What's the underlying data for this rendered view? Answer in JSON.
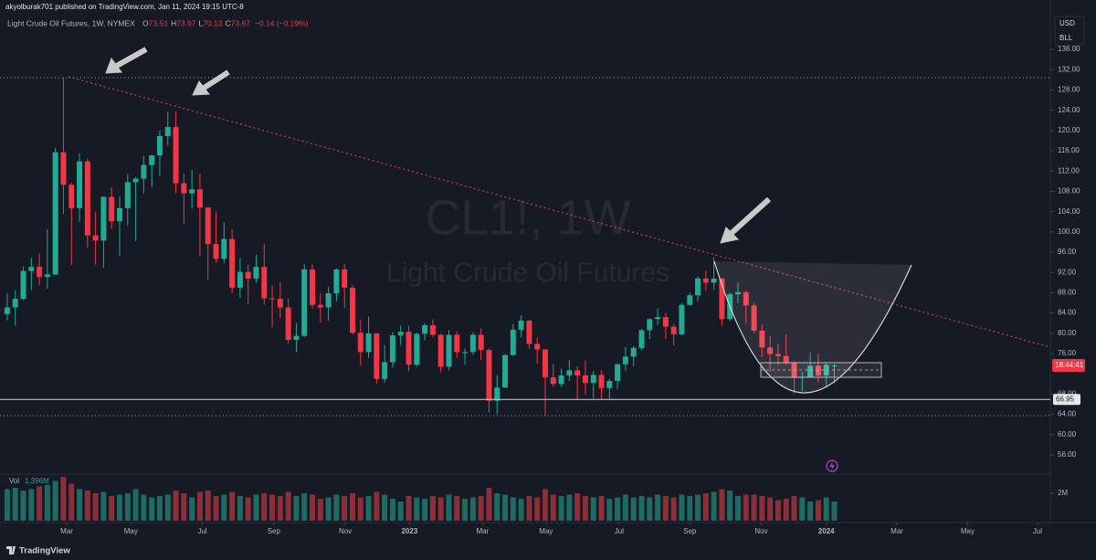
{
  "header": {
    "text": "akyolburak701 published on TradingView.com, Jan 11, 2024 19:15 UTC-8"
  },
  "footer": {
    "brand": "TradingView"
  },
  "chart_data": {
    "type": "candlestick",
    "title": "Light Crude Oil Futures, 1W, NYMEX",
    "watermark": [
      "CL1!, 1W",
      "Light Crude Oil Futures"
    ],
    "ohlc_legend": [
      {
        "key": "O",
        "value": "73.51"
      },
      {
        "key": "H",
        "value": "73.97"
      },
      {
        "key": "L",
        "value": "70.13"
      },
      {
        "key": "C",
        "value": "73.67"
      }
    ],
    "change": "−0.14 (−0.19%)",
    "currency": "USD",
    "unit": "BLL",
    "up_color": "#22ab94",
    "down_color": "#f23645",
    "candles": [
      [
        83.8,
        87.9,
        82.5,
        85.1
      ],
      [
        85.1,
        88.5,
        81.5,
        86.8
      ],
      [
        86.8,
        93.2,
        86.5,
        92.3
      ],
      [
        92.3,
        94.9,
        88.5,
        93.1
      ],
      [
        93.1,
        95.8,
        89.5,
        91.1
      ],
      [
        91.1,
        100.5,
        88.8,
        91.6
      ],
      [
        91.6,
        116.6,
        91.5,
        115.7
      ],
      [
        115.7,
        130.5,
        103.5,
        109.3
      ],
      [
        109.3,
        109.7,
        93.5,
        104.7
      ],
      [
        104.7,
        115.5,
        102.0,
        113.9
      ],
      [
        113.9,
        114.5,
        96.9,
        99.3
      ],
      [
        99.3,
        104.0,
        93.5,
        98.3
      ],
      [
        98.3,
        107.0,
        92.9,
        106.9
      ],
      [
        106.9,
        108.8,
        100.6,
        102.1
      ],
      [
        102.1,
        107.0,
        95.3,
        104.7
      ],
      [
        104.7,
        111.4,
        101.3,
        109.8
      ],
      [
        109.8,
        110.8,
        98.2,
        110.5
      ],
      [
        110.5,
        115.0,
        107.6,
        113.2
      ],
      [
        113.2,
        115.2,
        108.9,
        115.1
      ],
      [
        115.1,
        120.0,
        111.0,
        118.9
      ],
      [
        118.9,
        123.7,
        117.0,
        120.7
      ],
      [
        120.7,
        123.7,
        107.6,
        109.6
      ],
      [
        109.6,
        111.5,
        101.5,
        107.6
      ],
      [
        107.6,
        112.2,
        104.6,
        108.4
      ],
      [
        108.4,
        111.5,
        95.1,
        104.8
      ],
      [
        104.8,
        104.9,
        90.6,
        97.6
      ],
      [
        97.6,
        104.0,
        94.0,
        94.7
      ],
      [
        94.7,
        101.9,
        93.8,
        98.6
      ],
      [
        98.6,
        100.5,
        87.9,
        89.0
      ],
      [
        89.0,
        94.9,
        87.0,
        92.1
      ],
      [
        92.1,
        93.5,
        85.7,
        90.8
      ],
      [
        90.8,
        95.5,
        90.0,
        93.1
      ],
      [
        93.1,
        97.7,
        85.6,
        86.9
      ],
      [
        86.9,
        89.4,
        81.2,
        86.8
      ],
      [
        86.8,
        90.1,
        83.0,
        85.1
      ],
      [
        85.1,
        86.9,
        78.0,
        78.7
      ],
      [
        78.7,
        82.0,
        76.3,
        79.5
      ],
      [
        79.5,
        93.6,
        79.2,
        92.6
      ],
      [
        92.6,
        93.6,
        84.9,
        85.6
      ],
      [
        85.6,
        87.9,
        82.1,
        85.1
      ],
      [
        85.1,
        89.2,
        82.5,
        87.9
      ],
      [
        87.9,
        92.8,
        86.3,
        92.6
      ],
      [
        92.6,
        93.7,
        85.0,
        89.0
      ],
      [
        89.0,
        89.5,
        79.8,
        80.1
      ],
      [
        80.1,
        82.6,
        73.6,
        76.3
      ],
      [
        76.3,
        83.3,
        75.2,
        80.0
      ],
      [
        80.0,
        80.0,
        70.1,
        71.0
      ],
      [
        71.0,
        77.7,
        70.3,
        74.3
      ],
      [
        74.3,
        80.3,
        73.2,
        79.6
      ],
      [
        79.6,
        81.5,
        77.7,
        80.3
      ],
      [
        80.3,
        81.5,
        72.5,
        73.8
      ],
      [
        73.8,
        80.1,
        73.4,
        79.9
      ],
      [
        79.9,
        82.0,
        78.6,
        81.6
      ],
      [
        81.6,
        82.7,
        79.2,
        79.7
      ],
      [
        79.7,
        79.9,
        72.3,
        73.4
      ],
      [
        73.4,
        80.6,
        72.7,
        79.7
      ],
      [
        79.7,
        80.4,
        75.1,
        76.3
      ],
      [
        76.3,
        77.0,
        73.8,
        76.3
      ],
      [
        76.3,
        80.2,
        75.8,
        79.7
      ],
      [
        79.7,
        81.0,
        74.7,
        76.7
      ],
      [
        76.7,
        77.0,
        64.4,
        66.7
      ],
      [
        66.7,
        71.7,
        64.1,
        69.3
      ],
      [
        69.3,
        75.9,
        69.2,
        75.7
      ],
      [
        75.7,
        81.8,
        75.6,
        80.7
      ],
      [
        80.7,
        83.5,
        79.2,
        82.5
      ],
      [
        82.5,
        82.7,
        76.9,
        77.9
      ],
      [
        77.9,
        79.2,
        74.0,
        76.8
      ],
      [
        76.8,
        76.9,
        63.6,
        71.3
      ],
      [
        71.3,
        74.0,
        69.4,
        70.0
      ],
      [
        70.0,
        73.0,
        69.4,
        71.7
      ],
      [
        71.7,
        74.7,
        70.6,
        72.7
      ],
      [
        72.7,
        73.5,
        67.0,
        71.7
      ],
      [
        71.7,
        74.6,
        67.9,
        70.2
      ],
      [
        70.2,
        72.6,
        67.2,
        71.8
      ],
      [
        71.8,
        72.7,
        67.0,
        69.2
      ],
      [
        69.2,
        71.0,
        67.1,
        70.6
      ],
      [
        70.6,
        74.0,
        69.0,
        73.9
      ],
      [
        73.9,
        77.3,
        72.6,
        75.4
      ],
      [
        75.4,
        77.5,
        73.5,
        77.1
      ],
      [
        77.1,
        80.9,
        76.7,
        80.6
      ],
      [
        80.6,
        83.0,
        78.8,
        82.8
      ],
      [
        82.8,
        84.9,
        81.7,
        83.2
      ],
      [
        83.2,
        84.0,
        78.9,
        81.3
      ],
      [
        81.3,
        81.8,
        77.6,
        79.8
      ],
      [
        79.8,
        86.0,
        79.6,
        85.6
      ],
      [
        85.6,
        88.1,
        85.4,
        87.5
      ],
      [
        87.5,
        91.2,
        86.3,
        90.8
      ],
      [
        90.8,
        92.4,
        88.3,
        90.0
      ],
      [
        90.0,
        95.0,
        88.6,
        90.8
      ],
      [
        90.8,
        91.0,
        81.5,
        82.8
      ],
      [
        82.8,
        88.0,
        82.4,
        87.7
      ],
      [
        87.7,
        90.0,
        85.9,
        88.1
      ],
      [
        88.1,
        88.4,
        82.0,
        85.5
      ],
      [
        85.5,
        86.0,
        80.0,
        80.5
      ],
      [
        80.5,
        81.7,
        75.3,
        77.2
      ],
      [
        77.2,
        79.4,
        72.4,
        75.9
      ],
      [
        75.9,
        78.0,
        73.8,
        75.5
      ],
      [
        75.5,
        79.7,
        73.8,
        74.1
      ],
      [
        74.1,
        74.6,
        68.0,
        71.2
      ],
      [
        71.2,
        72.4,
        68.6,
        71.4
      ],
      [
        71.4,
        76.2,
        71.2,
        73.6
      ],
      [
        73.6,
        76.0,
        70.3,
        71.7
      ],
      [
        71.7,
        74.2,
        69.3,
        73.8
      ],
      [
        73.51,
        73.97,
        70.13,
        73.67
      ]
    ],
    "xlim": [
      -0.9,
      129.9
    ],
    "xticks": [
      {
        "value": 7.4,
        "label": "Mar"
      },
      {
        "value": 15.4,
        "label": "May"
      },
      {
        "value": 24.3,
        "label": "Jul"
      },
      {
        "value": 33.2,
        "label": "Sep"
      },
      {
        "value": 42.1,
        "label": "Nov"
      },
      {
        "value": 50.1,
        "label": "2023"
      },
      {
        "value": 59.2,
        "label": "Mar"
      },
      {
        "value": 67.1,
        "label": "May"
      },
      {
        "value": 76.2,
        "label": "Jul"
      },
      {
        "value": 85.0,
        "label": "Sep"
      },
      {
        "value": 93.9,
        "label": "Nov"
      },
      {
        "value": 102.0,
        "label": "2024"
      },
      {
        "value": 110.8,
        "label": "Mar"
      },
      {
        "value": 119.6,
        "label": "May"
      },
      {
        "value": 128.3,
        "label": "Jul"
      }
    ],
    "ylim": [
      52.4,
      142.5
    ],
    "yticks": [
      {
        "value": 136,
        "label": "136.00"
      },
      {
        "value": 132,
        "label": "132.00"
      },
      {
        "value": 128,
        "label": "128.00"
      },
      {
        "value": 124,
        "label": "124.00"
      },
      {
        "value": 120,
        "label": "120.00"
      },
      {
        "value": 116,
        "label": "116.00"
      },
      {
        "value": 112,
        "label": "112.00"
      },
      {
        "value": 108,
        "label": "108.00"
      },
      {
        "value": 104,
        "label": "104.00"
      },
      {
        "value": 100,
        "label": "100.00"
      },
      {
        "value": 96,
        "label": "96.00"
      },
      {
        "value": 92,
        "label": "92.00"
      },
      {
        "value": 88,
        "label": "88.00"
      },
      {
        "value": 84,
        "label": "84.00"
      },
      {
        "value": 80,
        "label": "80.00"
      },
      {
        "value": 76,
        "label": "76.00"
      },
      {
        "value": 68,
        "label": "68.00"
      },
      {
        "value": 64,
        "label": "64.00"
      },
      {
        "value": 60,
        "label": "60.00"
      },
      {
        "value": 56,
        "label": "56.00"
      }
    ],
    "horizontal_line": {
      "value": 66.95,
      "label": "66.95"
    },
    "countdown": "18:44:41",
    "grid": false,
    "volume": {
      "label": "Vol",
      "value_label": "1.396M",
      "up_color": "#1d6b63",
      "down_color": "#8c2f39",
      "values": [
        2.3,
        2.4,
        2.2,
        2.3,
        2.5,
        2.6,
        2.9,
        3.2,
        2.7,
        2.3,
        2.2,
        2.0,
        2.1,
        1.8,
        1.9,
        2.0,
        2.3,
        1.9,
        1.7,
        1.8,
        1.9,
        2.2,
        2.0,
        1.7,
        2.1,
        2.2,
        1.8,
        1.9,
        2.1,
        1.8,
        1.7,
        1.9,
        2.0,
        1.9,
        1.8,
        2.1,
        1.8,
        2.0,
        1.9,
        1.6,
        1.7,
        1.9,
        1.8,
        2.0,
        1.7,
        1.8,
        2.1,
        1.9,
        1.6,
        1.4,
        1.8,
        1.7,
        1.6,
        1.8,
        1.7,
        1.9,
        1.8,
        1.6,
        1.7,
        1.8,
        2.4,
        2.0,
        1.9,
        1.7,
        1.6,
        1.8,
        1.7,
        2.3,
        1.9,
        1.8,
        1.9,
        2.0,
        1.8,
        1.7,
        1.8,
        1.6,
        1.7,
        1.9,
        1.7,
        1.8,
        1.7,
        1.9,
        1.8,
        1.7,
        1.9,
        1.8,
        1.9,
        2.0,
        2.1,
        2.3,
        2.2,
        1.8,
        1.9,
        1.9,
        1.8,
        1.7,
        1.5,
        1.6,
        1.8,
        1.7,
        1.4,
        1.5,
        1.7,
        1.396
      ],
      "ylim": [
        0,
        3.33
      ],
      "yticks": [
        {
          "value": 2,
          "label": "2M"
        }
      ]
    }
  }
}
